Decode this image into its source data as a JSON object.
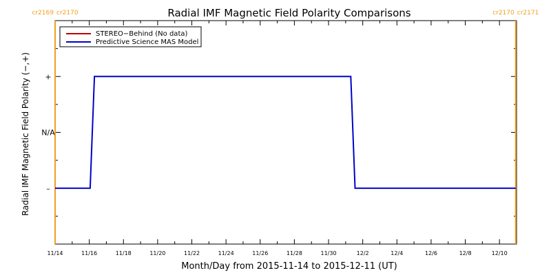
{
  "chart_data": {
    "type": "line",
    "title": "Radial IMF Magnetic Field Polarity Comparisons",
    "xlabel": "Month/Day from 2015-11-14 to 2015-12-11 (UT)",
    "ylabel": "Radial IMF Magnetic Field Polarity (−,+)",
    "x_range": [
      "2015-11-14",
      "2015-12-11"
    ],
    "x_ticks": [
      "11/14",
      "11/16",
      "11/18",
      "11/20",
      "11/22",
      "11/24",
      "11/26",
      "11/28",
      "11/30",
      "12/2",
      "12/4",
      "12/6",
      "12/8",
      "12/10"
    ],
    "y_ticks": [
      {
        "value": 1,
        "label": "+"
      },
      {
        "value": 0,
        "label": "N/A"
      },
      {
        "value": -1,
        "label": "–"
      }
    ],
    "ylim": [
      -2,
      2
    ],
    "grid": false,
    "legend_position": "top-left",
    "carrington_markers": [
      {
        "date": "2015-11-14",
        "left_label": "cr2169",
        "right_label": "cr2170",
        "color": "#f0a020"
      },
      {
        "date": "2015-12-10.95",
        "left_label": "cr2170",
        "right_label": "cr2171",
        "color": "#f0a020"
      }
    ],
    "series": [
      {
        "name": "STEREO−Behind (No data)",
        "color": "#c00000",
        "x": [],
        "y": []
      },
      {
        "name": "Predictive Science MAS Model",
        "color": "#0000cc",
        "x": [
          "2015-11-14",
          "2015-11-16.05",
          "2015-11-16.3",
          "2015-12-01.3",
          "2015-12-01.55",
          "2015-12-10.95"
        ],
        "y": [
          -1,
          -1,
          1,
          1,
          -1,
          -1
        ]
      }
    ]
  }
}
